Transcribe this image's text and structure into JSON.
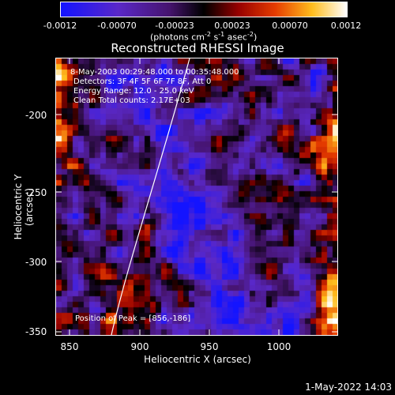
{
  "colorbar": {
    "ticks": [
      "-0.0012",
      "-0.00070",
      "-0.00023",
      "0.00023",
      "0.00070",
      "0.0012"
    ],
    "unit_main": "(photons cm",
    "unit_exp1": "-2",
    "unit_mid1": " s",
    "unit_exp2": "-1",
    "unit_mid2": " asec",
    "unit_exp3": "-2",
    "unit_end": ")"
  },
  "title": "Reconstructed RHESSI Image",
  "annotations": {
    "time": "8-May-2003 00:29:48.000 to 00:35:48.000",
    "detectors": "Detectors: 3F 4F 5F 6F 7F 8F, Att 0",
    "energy": "Energy Range: 12.0 - 25.0 keV",
    "method": "Clean    Total counts: 2.17E+03",
    "peak": "Position of Peak = [856,-186]"
  },
  "axes": {
    "xlabel": "Heliocentric X (arcsec)",
    "ylabel": "Heliocentric Y (arcsec)",
    "xticks": [
      "850",
      "900",
      "950",
      "1000"
    ],
    "yticks": [
      "-200",
      "-250",
      "-300",
      "-350"
    ]
  },
  "timestamp": "1-May-2022 14:03",
  "colors": {
    "frame": "#ffffff",
    "background": "#000000"
  }
}
